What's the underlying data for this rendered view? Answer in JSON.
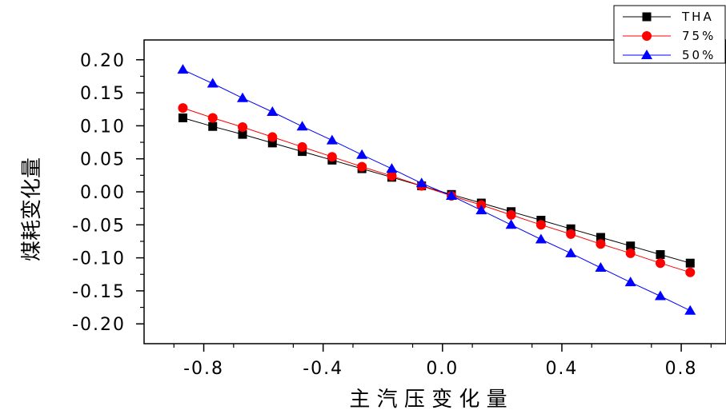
{
  "chart_data": {
    "type": "line",
    "title": "",
    "xlabel": "主 汽 压 变 化 量",
    "ylabel": "煤耗变化量",
    "xlim": [
      -1.0,
      0.95
    ],
    "ylim": [
      -0.23,
      0.23
    ],
    "x_ticks": [
      -0.8,
      -0.4,
      0.0,
      0.4,
      0.8
    ],
    "x_tick_labels": [
      "-0.8",
      "-0.4",
      "0.0",
      "0.4",
      "0.8"
    ],
    "y_ticks": [
      0.2,
      0.15,
      0.1,
      0.05,
      0.0,
      -0.05,
      -0.1,
      -0.15,
      -0.2
    ],
    "y_tick_labels": [
      "0.20",
      "0.15",
      "0.10",
      "0.05",
      "0.00",
      "-0.05",
      "-0.10",
      "-0.15",
      "-0.20"
    ],
    "x": [
      -0.87,
      -0.77,
      -0.67,
      -0.57,
      -0.47,
      -0.37,
      -0.27,
      -0.17,
      -0.07,
      0.03,
      0.13,
      0.23,
      0.33,
      0.43,
      0.53,
      0.63,
      0.73,
      0.83
    ],
    "series": [
      {
        "name": "THA",
        "color": "#000000",
        "marker": "square",
        "values": [
          0.112,
          0.099,
          0.087,
          0.074,
          0.061,
          0.048,
          0.035,
          0.022,
          0.009,
          -0.004,
          -0.017,
          -0.03,
          -0.043,
          -0.056,
          -0.069,
          -0.082,
          -0.095,
          -0.108
        ]
      },
      {
        "name": "75%",
        "color": "#ff0000",
        "marker": "circle",
        "values": [
          0.127,
          0.112,
          0.098,
          0.083,
          0.068,
          0.053,
          0.038,
          0.024,
          0.009,
          -0.006,
          -0.02,
          -0.035,
          -0.05,
          -0.064,
          -0.079,
          -0.093,
          -0.108,
          -0.122
        ]
      },
      {
        "name": "50%",
        "color": "#0000ff",
        "marker": "triangle",
        "values": [
          0.185,
          0.164,
          0.142,
          0.121,
          0.099,
          0.078,
          0.056,
          0.035,
          0.013,
          -0.006,
          -0.028,
          -0.05,
          -0.072,
          -0.093,
          -0.115,
          -0.137,
          -0.158,
          -0.18
        ]
      }
    ],
    "legend_position": "top-right",
    "grid": false
  }
}
